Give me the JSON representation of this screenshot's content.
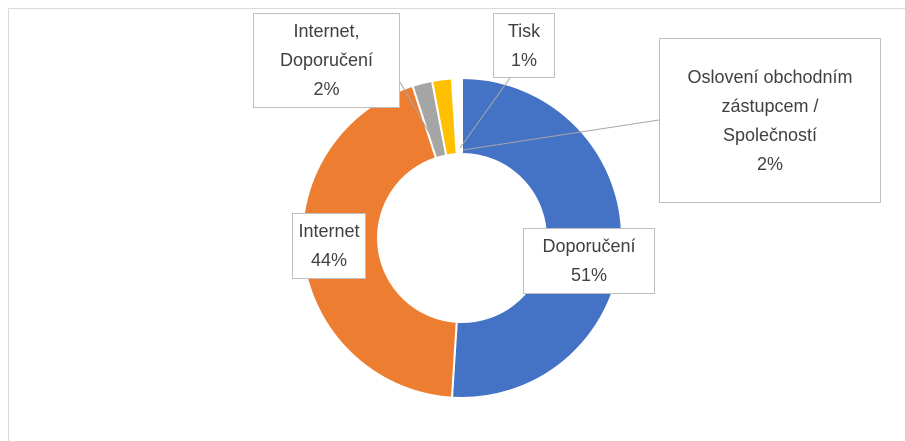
{
  "chart_data": {
    "type": "donut",
    "categories": [
      "Doporučení",
      "Internet",
      "Internet, Doporučení",
      "Oslovení obchodním zástupcem / Společností",
      "Tisk"
    ],
    "values": [
      51,
      44,
      2,
      2,
      1
    ],
    "value_labels": [
      "51%",
      "44%",
      "2%",
      "2%",
      "1%"
    ],
    "colors": [
      "#4472c4",
      "#ed7d31",
      "#a5a5a5",
      "#ffc000",
      "#ffffff"
    ]
  }
}
